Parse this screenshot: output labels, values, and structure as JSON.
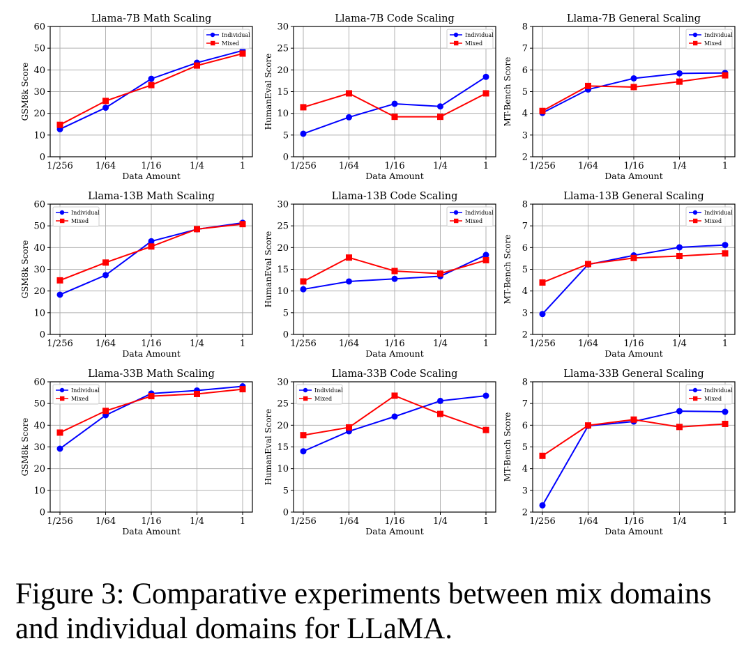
{
  "caption": "Figure 3: Comparative experiments between mix domains and individual domains for LLaMA.",
  "colors": {
    "individual": "#0000ff",
    "mixed": "#ff0000",
    "grid": "#b0b0b0",
    "axis": "#000000"
  },
  "chart_data": [
    {
      "type": "line",
      "title": "Llama-7B Math Scaling",
      "xlabel": "Data Amount",
      "ylabel": "GSM8k Score",
      "categories": [
        "1/256",
        "1/64",
        "1/16",
        "1/4",
        "1"
      ],
      "ylim": [
        0,
        60
      ],
      "yticks": [
        0,
        10,
        20,
        30,
        40,
        50,
        60
      ],
      "grid": true,
      "legend": "top-right",
      "series": [
        {
          "name": "Individual",
          "values": [
            12.7,
            22.6,
            35.9,
            43.3,
            48.9
          ]
        },
        {
          "name": "Mixed",
          "values": [
            14.7,
            25.7,
            33.0,
            42.0,
            47.5
          ]
        }
      ]
    },
    {
      "type": "line",
      "title": "Llama-7B Code Scaling",
      "xlabel": "Data Amount",
      "ylabel": "HumanEval Score",
      "categories": [
        "1/256",
        "1/64",
        "1/16",
        "1/4",
        "1"
      ],
      "ylim": [
        0,
        30
      ],
      "yticks": [
        0,
        5,
        10,
        15,
        20,
        25,
        30
      ],
      "grid": true,
      "legend": "top-right",
      "series": [
        {
          "name": "Individual",
          "values": [
            5.3,
            9.1,
            12.2,
            11.6,
            18.4
          ]
        },
        {
          "name": "Mixed",
          "values": [
            11.4,
            14.6,
            9.2,
            9.2,
            14.6
          ]
        }
      ]
    },
    {
      "type": "line",
      "title": "Llama-7B General Scaling",
      "xlabel": "Data Amount",
      "ylabel": "MT-Bench Score",
      "categories": [
        "1/256",
        "1/64",
        "1/16",
        "1/4",
        "1"
      ],
      "ylim": [
        2,
        8
      ],
      "yticks": [
        2,
        3,
        4,
        5,
        6,
        7,
        8
      ],
      "grid": true,
      "legend": "top-right",
      "series": [
        {
          "name": "Individual",
          "values": [
            4.02,
            5.1,
            5.61,
            5.84,
            5.86
          ]
        },
        {
          "name": "Mixed",
          "values": [
            4.11,
            5.26,
            5.21,
            5.46,
            5.75
          ]
        }
      ]
    },
    {
      "type": "line",
      "title": "Llama-13B Math Scaling",
      "xlabel": "Data Amount",
      "ylabel": "GSM8k Score",
      "categories": [
        "1/256",
        "1/64",
        "1/16",
        "1/4",
        "1"
      ],
      "ylim": [
        0,
        60
      ],
      "yticks": [
        0,
        10,
        20,
        30,
        40,
        50,
        60
      ],
      "grid": true,
      "legend": "top-left",
      "series": [
        {
          "name": "Individual",
          "values": [
            18.3,
            27.3,
            42.9,
            48.4,
            51.4
          ]
        },
        {
          "name": "Mixed",
          "values": [
            24.9,
            33.1,
            40.5,
            48.5,
            50.8
          ]
        }
      ]
    },
    {
      "type": "line",
      "title": "Llama-13B Code Scaling",
      "xlabel": "Data Amount",
      "ylabel": "HumanEval Score",
      "categories": [
        "1/256",
        "1/64",
        "1/16",
        "1/4",
        "1"
      ],
      "ylim": [
        0,
        30
      ],
      "yticks": [
        0,
        5,
        10,
        15,
        20,
        25,
        30
      ],
      "grid": true,
      "legend": "top-right",
      "series": [
        {
          "name": "Individual",
          "values": [
            10.4,
            12.2,
            12.8,
            13.4,
            18.3
          ]
        },
        {
          "name": "Mixed",
          "values": [
            12.2,
            17.7,
            14.6,
            14.0,
            17.1
          ]
        }
      ]
    },
    {
      "type": "line",
      "title": "Llama-13B General Scaling",
      "xlabel": "Data Amount",
      "ylabel": "MT-Bench Score",
      "categories": [
        "1/256",
        "1/64",
        "1/16",
        "1/4",
        "1"
      ],
      "ylim": [
        2,
        8
      ],
      "yticks": [
        2,
        3,
        4,
        5,
        6,
        7,
        8
      ],
      "grid": true,
      "legend": "top-right",
      "series": [
        {
          "name": "Individual",
          "values": [
            2.94,
            5.22,
            5.64,
            6.01,
            6.12
          ]
        },
        {
          "name": "Mixed",
          "values": [
            4.39,
            5.24,
            5.52,
            5.61,
            5.73
          ]
        }
      ]
    },
    {
      "type": "line",
      "title": "Llama-33B Math Scaling",
      "xlabel": "Data Amount",
      "ylabel": "GSM8k Score",
      "categories": [
        "1/256",
        "1/64",
        "1/16",
        "1/4",
        "1"
      ],
      "ylim": [
        0,
        60
      ],
      "yticks": [
        0,
        10,
        20,
        30,
        40,
        50,
        60
      ],
      "grid": true,
      "legend": "top-left",
      "series": [
        {
          "name": "Individual",
          "values": [
            29.2,
            44.6,
            54.6,
            56.0,
            57.9
          ]
        },
        {
          "name": "Mixed",
          "values": [
            36.6,
            46.6,
            53.4,
            54.4,
            56.6
          ]
        }
      ]
    },
    {
      "type": "line",
      "title": "Llama-33B Code Scaling",
      "xlabel": "Data Amount",
      "ylabel": "HumanEval Score",
      "categories": [
        "1/256",
        "1/64",
        "1/16",
        "1/4",
        "1"
      ],
      "ylim": [
        0,
        30
      ],
      "yticks": [
        0,
        5,
        10,
        15,
        20,
        25,
        30
      ],
      "grid": true,
      "legend": "top-left",
      "series": [
        {
          "name": "Individual",
          "values": [
            14.0,
            18.6,
            22.0,
            25.6,
            26.8
          ]
        },
        {
          "name": "Mixed",
          "values": [
            17.7,
            19.5,
            26.8,
            22.6,
            18.9
          ]
        }
      ]
    },
    {
      "type": "line",
      "title": "Llama-33B General Scaling",
      "xlabel": "Data Amount",
      "ylabel": "MT-Bench Score",
      "categories": [
        "1/256",
        "1/64",
        "1/16",
        "1/4",
        "1"
      ],
      "ylim": [
        2,
        8
      ],
      "yticks": [
        2,
        3,
        4,
        5,
        6,
        7,
        8
      ],
      "grid": true,
      "legend": "top-right",
      "series": [
        {
          "name": "Individual",
          "values": [
            2.31,
            5.97,
            6.17,
            6.65,
            6.62
          ]
        },
        {
          "name": "Mixed",
          "values": [
            4.59,
            5.99,
            6.26,
            5.92,
            6.06
          ]
        }
      ]
    }
  ]
}
